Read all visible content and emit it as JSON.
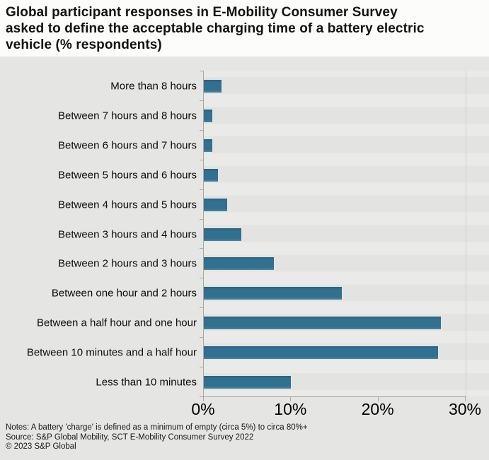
{
  "header": {
    "title": "Global participant responses in E-Mobility Consumer Survey asked to define the acceptable charging time of a battery electric vehicle (% respondents)",
    "title_lines": [
      "Global participant responses in E-Mobility Consumer Survey",
      "asked to define the acceptable charging time of a battery electric",
      "vehicle (% respondents)"
    ]
  },
  "chart_data": {
    "type": "bar",
    "orientation": "horizontal",
    "title": "Global participant responses in E-Mobility Consumer Survey asked to define the acceptable charging time of a battery electric vehicle (% respondents)",
    "categories": [
      "More than 8 hours",
      "Between 7 hours and 8 hours",
      "Between 6 hours and 7 hours",
      "Between 5 hours and 6 hours",
      "Between 4 hours and 5 hours",
      "Between 3 hours and 4 hours",
      "Between 2 hours and 3 hours",
      "Between one hour and 2 hours",
      "Between a half hour and one hour",
      "Between 10 minutes and a half hour",
      "Less than 10 minutes"
    ],
    "values": [
      2,
      1,
      1,
      1.6,
      2.7,
      4.3,
      8,
      15.8,
      27.2,
      26.8,
      10
    ],
    "value_suffix": "%",
    "xlabel": "",
    "ylabel": "",
    "xlim": [
      0,
      30
    ],
    "x_tick_labels": [
      "0%",
      "10%",
      "20%",
      "30%"
    ],
    "x_tick_values": [
      0,
      10,
      20,
      30
    ],
    "grid": false,
    "legend": "none",
    "bar_color": "#31708f",
    "plot_bg": "#e6e7e4"
  },
  "footer": {
    "notes": "Notes: A battery 'charge' is defined as a minimum of empty (circa 5%) to circa 80%+",
    "source": "Source: S&P Global Mobility, SCT E-Mobility Consumer Survey 2022",
    "copyright": "© 2023 S&P Global"
  }
}
